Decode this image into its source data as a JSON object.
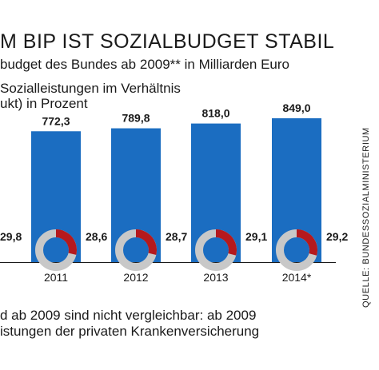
{
  "header": {
    "title": "M BIP IST SOZIALBUDGET STABIL",
    "subtitle": "budget des Bundes ab 2009** in Milliarden Euro",
    "legend_line1": "Sozialleistungen im Verhältnis",
    "legend_line2": "ukt) in Prozent"
  },
  "footer": {
    "line1": "d ab 2009 sind nicht vergleichbar: ab 2009",
    "line2": "istungen der privaten Krankenversicherung",
    "source": "QUELLE: BUNDESSOZIALMINISTERIUM"
  },
  "colors": {
    "bar": "#1b6dc1",
    "ring_share": "#b5191d",
    "ring_rest": "#c8c8c8",
    "ring_center": "#1b6dc1"
  },
  "chart_data": {
    "type": "bar",
    "categories": [
      "2011",
      "2012",
      "2013",
      "2014*"
    ],
    "values": [
      772.3,
      789.8,
      818.0,
      849.0
    ],
    "value_labels": [
      "772,3",
      "789,8",
      "818,0",
      "849,0"
    ],
    "percent_share": [
      28.6,
      28.7,
      29.1,
      29.2
    ],
    "percent_labels": [
      "28,6",
      "28,7",
      "29,1",
      "29,2"
    ],
    "partial_previous_percent_label": "29,8",
    "y_unit": "Milliarden Euro",
    "grid": false
  }
}
